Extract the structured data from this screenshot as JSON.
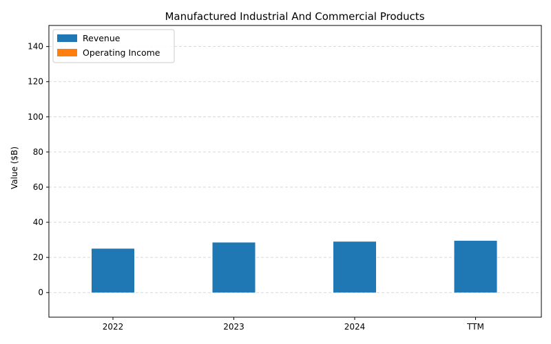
{
  "chart_data": {
    "type": "bar",
    "title": "Manufactured Industrial And Commercial Products",
    "xlabel": "",
    "ylabel": "Value ($B)",
    "categories": [
      "2022",
      "2023",
      "2024",
      "TTM"
    ],
    "series": [
      {
        "name": "Revenue",
        "values": [
          25.0,
          28.5,
          29.0,
          29.5
        ],
        "color": "#1f77b4"
      },
      {
        "name": "Operating Income",
        "values": [
          0,
          0,
          0,
          0
        ],
        "color": "#ff7f0e"
      }
    ],
    "ylim": [
      -14,
      152
    ],
    "yticks": [
      0,
      20,
      40,
      60,
      80,
      100,
      120,
      140
    ],
    "grid": "y-dashed",
    "legend_position": "top-left"
  }
}
